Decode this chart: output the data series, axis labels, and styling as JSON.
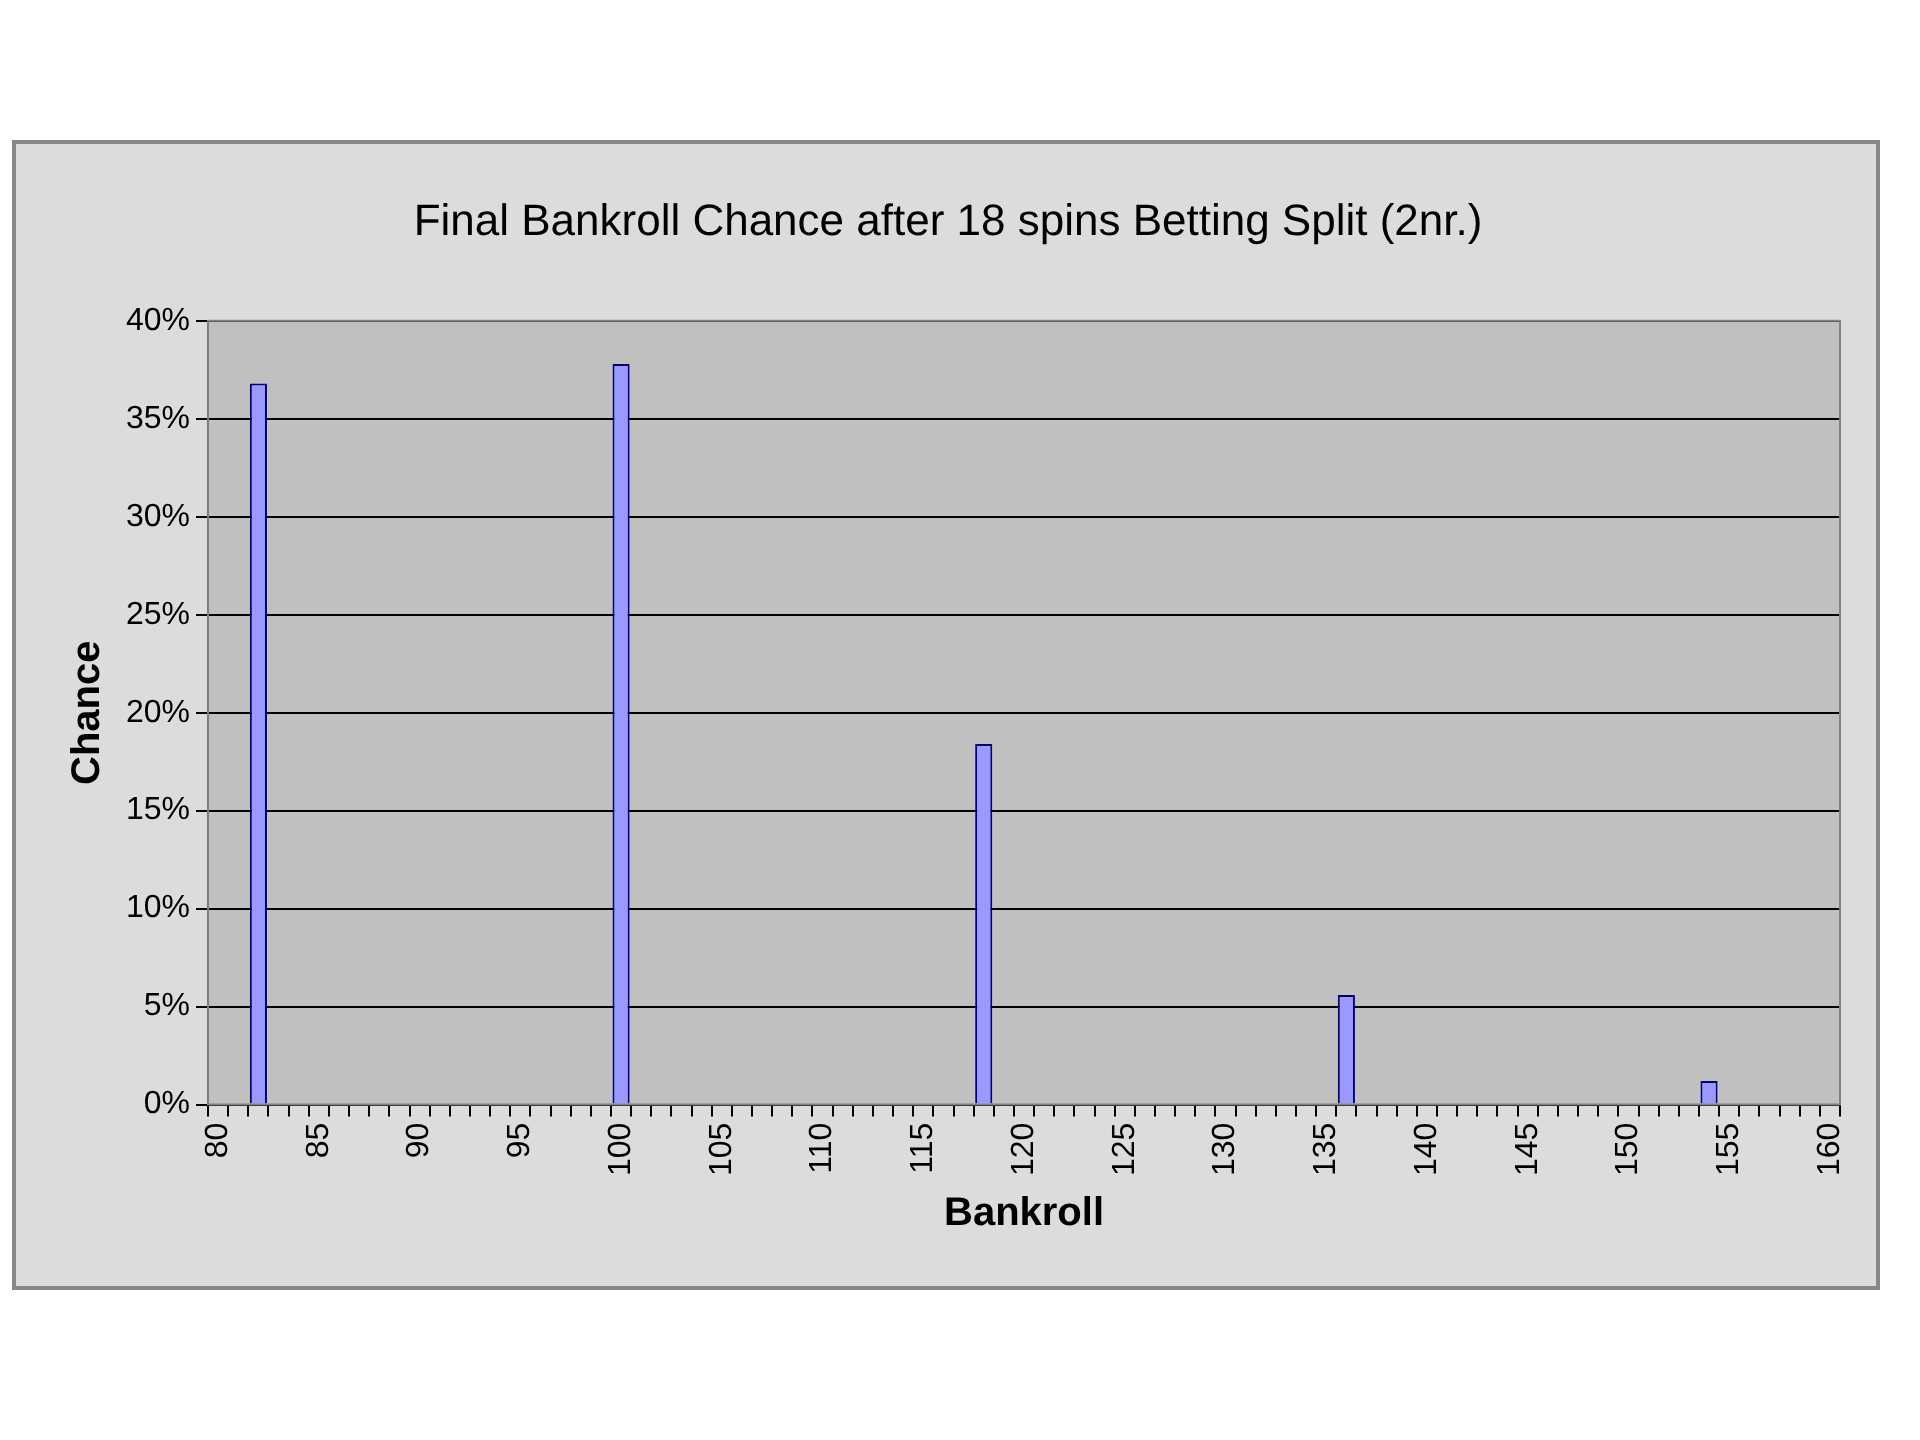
{
  "chart_data": {
    "type": "bar",
    "title": "Final Bankroll Chance after 18 spins Betting Split (2nr.)",
    "xlabel": "Bankroll",
    "ylabel": "Chance",
    "categories": [
      "80",
      null,
      null,
      null,
      null,
      "85",
      null,
      null,
      null,
      null,
      "90",
      null,
      null,
      null,
      null,
      "95",
      null,
      null,
      null,
      null,
      "100",
      null,
      null,
      null,
      null,
      "105",
      null,
      null,
      null,
      null,
      "110",
      null,
      null,
      null,
      null,
      "115",
      null,
      null,
      null,
      null,
      "120",
      null,
      null,
      null,
      null,
      "125",
      null,
      null,
      null,
      null,
      "130",
      null,
      null,
      null,
      null,
      "135",
      null,
      null,
      null,
      null,
      "140",
      null,
      null,
      null,
      null,
      "145",
      null,
      null,
      null,
      null,
      "150",
      null,
      null,
      null,
      null,
      "155",
      null,
      null,
      null,
      null,
      "160"
    ],
    "values": [
      null,
      null,
      36.8,
      null,
      null,
      null,
      null,
      null,
      null,
      null,
      null,
      null,
      null,
      null,
      null,
      null,
      null,
      null,
      null,
      null,
      37.8,
      null,
      null,
      null,
      null,
      null,
      null,
      null,
      null,
      null,
      null,
      null,
      null,
      null,
      null,
      null,
      null,
      null,
      18.4,
      null,
      null,
      null,
      null,
      null,
      null,
      null,
      null,
      null,
      null,
      null,
      null,
      null,
      null,
      null,
      null,
      null,
      5.6,
      null,
      null,
      null,
      null,
      null,
      null,
      null,
      null,
      null,
      null,
      null,
      null,
      null,
      null,
      null,
      null,
      null,
      1.2,
      null,
      null,
      null,
      null,
      null,
      null
    ],
    "color": "#9999ff",
    "ylim": [
      0,
      40
    ],
    "yticks": [
      {
        "value": 0,
        "label": "0%"
      },
      {
        "value": 5,
        "label": "5%"
      },
      {
        "value": 10,
        "label": "10%"
      },
      {
        "value": 15,
        "label": "15%"
      },
      {
        "value": 20,
        "label": "20%"
      },
      {
        "value": 25,
        "label": "25%"
      },
      {
        "value": 30,
        "label": "30%"
      },
      {
        "value": 35,
        "label": "35%"
      },
      {
        "value": 40,
        "label": "40%"
      }
    ],
    "grid": "y"
  }
}
